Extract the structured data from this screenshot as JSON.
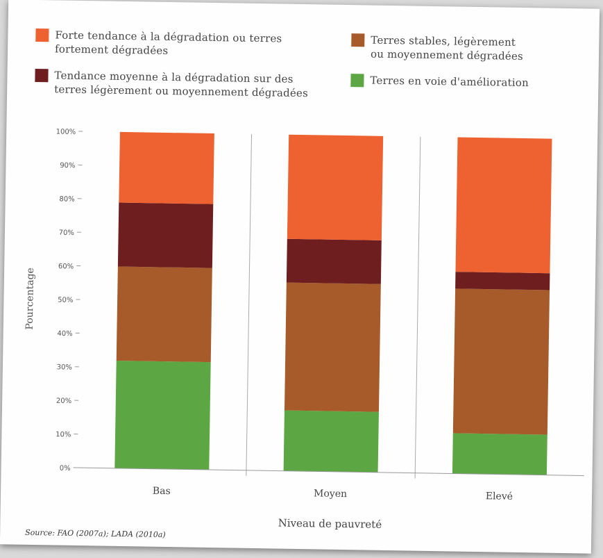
{
  "source": "Source: FAO (2007a); LADA (2010a)",
  "chart_data": {
    "type": "bar",
    "stacked": true,
    "categories": [
      "Bas",
      "Moyen",
      "Elevé"
    ],
    "series": [
      {
        "name": "Terres en voie d'amélioration",
        "color": "#5ca744",
        "values": [
          32,
          18,
          12
        ]
      },
      {
        "name": "Terres stables, légèrement ou moyennement dégradées",
        "color": "#a75b2b",
        "values": [
          28,
          38,
          43
        ]
      },
      {
        "name": "Tendance moyenne à la dégradation sur des terres légèrement ou moyennement dégradées",
        "color": "#6e1e1e",
        "values": [
          19,
          13,
          5
        ]
      },
      {
        "name": "Forte tendance à la dégradation ou terres fortement dégradées",
        "color": "#ed6230",
        "values": [
          21,
          31,
          40
        ]
      }
    ],
    "legend": [
      {
        "lines": [
          "Forte tendance à la dégradation ou terres",
          "fortement dégradées"
        ],
        "color": "#ed6230"
      },
      {
        "lines": [
          "Terres stables, légèrement",
          "ou moyennement dégradées"
        ],
        "color": "#a75b2b"
      },
      {
        "lines": [
          "Tendance moyenne à la dégradation sur des",
          "terres légèrement ou moyennement dégradées"
        ],
        "color": "#6e1e1e"
      },
      {
        "lines": [
          "Terres en voie d'amélioration"
        ],
        "color": "#5ca744"
      }
    ],
    "legend_position": "top",
    "xlabel": "Niveau de pauvreté",
    "ylabel": "Pourcentage",
    "ylim": [
      0,
      100
    ],
    "yticks": [
      "0%",
      "10%",
      "20%",
      "30%",
      "40%",
      "50%",
      "60%",
      "70%",
      "80%",
      "90%",
      "100%"
    ],
    "grid": false
  }
}
